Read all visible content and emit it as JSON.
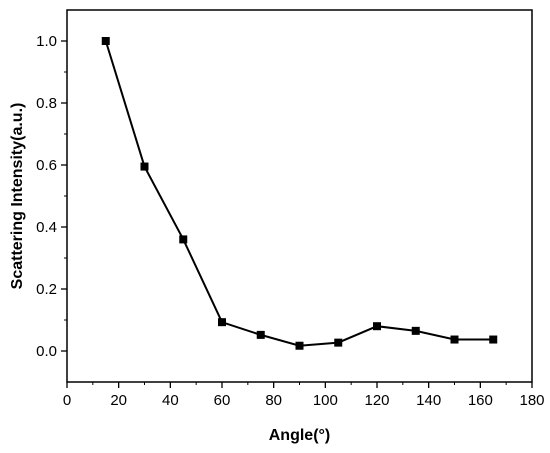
{
  "chart_data": {
    "type": "line",
    "title": "",
    "xlabel": "Angle(°)",
    "ylabel": "Scattering Intensity(a.u.)",
    "xlim": [
      0,
      180
    ],
    "ylim": [
      -0.1,
      1.1
    ],
    "xticks": [
      0,
      20,
      40,
      60,
      80,
      100,
      120,
      140,
      160,
      180
    ],
    "yticks": [
      0.0,
      0.2,
      0.4,
      0.6,
      0.8,
      1.0
    ],
    "ytick_labels": [
      "0.0",
      "0.2",
      "0.4",
      "0.6",
      "0.8",
      "1.0"
    ],
    "grid": false,
    "legend": "none",
    "marker": "square",
    "color": "#000000",
    "series": [
      {
        "x": [
          15,
          30,
          45,
          60,
          75,
          90,
          105,
          120,
          135,
          150,
          165
        ],
        "y": [
          1.0,
          0.595,
          0.36,
          0.093,
          0.052,
          0.017,
          0.027,
          0.08,
          0.065,
          0.037,
          0.037
        ]
      }
    ]
  }
}
